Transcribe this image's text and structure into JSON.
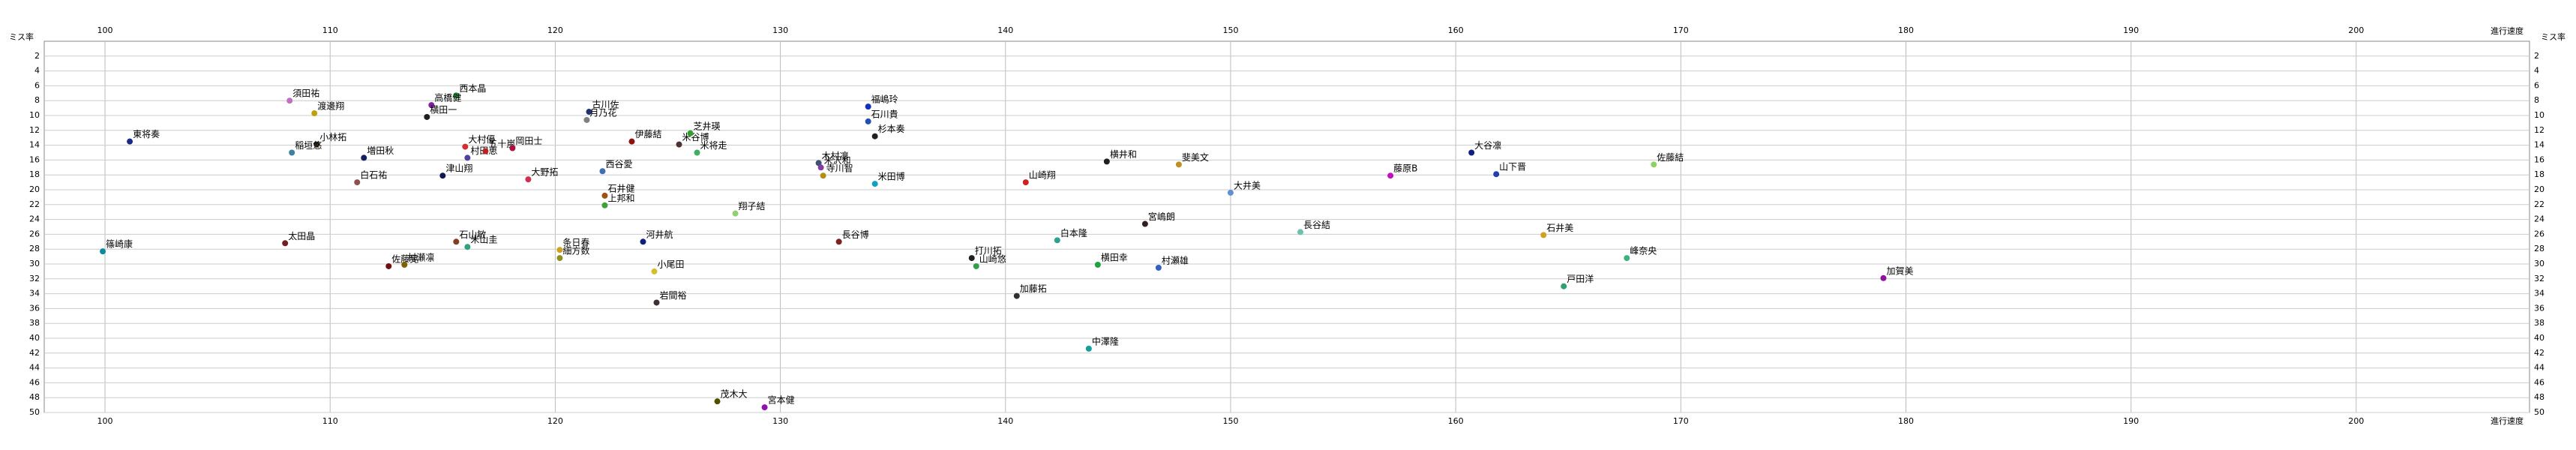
{
  "chart_data": {
    "type": "scatter",
    "x_label": "進行速度",
    "y_label": "ミス率",
    "xlim": [
      97.3,
      207.7
    ],
    "xticks": [
      100,
      110,
      120,
      130,
      140,
      150,
      160,
      170,
      180,
      190,
      200
    ],
    "ylim": [
      0,
      50
    ],
    "yticks": [
      2,
      4,
      6,
      8,
      10,
      12,
      14,
      16,
      18,
      20,
      22,
      24,
      26,
      28,
      30,
      32,
      34,
      36,
      38,
      40,
      42,
      44,
      46,
      48,
      50
    ],
    "y_inverted": true,
    "grid": true,
    "points": [
      {
        "label": "東将奏",
        "x": 101.1,
        "y": 13.5,
        "color": "#1a2a8a"
      },
      {
        "label": "篠崎康",
        "x": 99.9,
        "y": 28.3,
        "color": "#0a8a9a"
      },
      {
        "label": "須田祐",
        "x": 108.2,
        "y": 8.0,
        "color": "#c070c0"
      },
      {
        "label": "渡邊翔",
        "x": 109.3,
        "y": 9.7,
        "color": "#c0a010"
      },
      {
        "label": "小林拓",
        "x": 109.4,
        "y": 13.9,
        "color": "#403020"
      },
      {
        "label": "稲垣悠",
        "x": 108.3,
        "y": 15.0,
        "color": "#4080a0"
      },
      {
        "label": "増田秋",
        "x": 111.5,
        "y": 15.7,
        "color": "#102060"
      },
      {
        "label": "白石祐",
        "x": 111.2,
        "y": 19.0,
        "color": "#905050"
      },
      {
        "label": "太田晶",
        "x": 108.0,
        "y": 27.2,
        "color": "#702020"
      },
      {
        "label": "佐藤晃",
        "x": 112.6,
        "y": 30.3,
        "color": "#701010"
      },
      {
        "label": "村瀬凛",
        "x": 113.3,
        "y": 30.1,
        "color": "#806000"
      },
      {
        "label": "西本晶",
        "x": 115.6,
        "y": 7.3,
        "color": "#20a040"
      },
      {
        "label": "高橋健",
        "x": 114.5,
        "y": 8.6,
        "color": "#8020a0"
      },
      {
        "label": "横田一",
        "x": 114.3,
        "y": 10.2,
        "color": "#202020"
      },
      {
        "label": "大村優",
        "x": 116.0,
        "y": 14.2,
        "color": "#d03030"
      },
      {
        "label": "村田恵",
        "x": 116.1,
        "y": 15.7,
        "color": "#5040a0"
      },
      {
        "label": "津山翔",
        "x": 115.0,
        "y": 18.1,
        "color": "#101850"
      },
      {
        "label": "石山敏",
        "x": 115.6,
        "y": 27.0,
        "color": "#804020"
      },
      {
        "label": "米山圭",
        "x": 116.1,
        "y": 27.7,
        "color": "#30a080"
      },
      {
        "label": "五十嵐",
        "x": 116.9,
        "y": 14.8,
        "color": "#c02020"
      },
      {
        "label": "岡田士",
        "x": 118.1,
        "y": 14.4,
        "color": "#b01040"
      },
      {
        "label": "大野拓",
        "x": 118.8,
        "y": 18.6,
        "color": "#d03050"
      },
      {
        "label": "西谷愛",
        "x": 122.1,
        "y": 17.5,
        "color": "#4070b0"
      },
      {
        "label": "古川佐",
        "x": 121.5,
        "y": 9.5,
        "color": "#203070"
      },
      {
        "label": "月乃花",
        "x": 121.4,
        "y": 10.6,
        "color": "#808080"
      },
      {
        "label": "伊藤結",
        "x": 123.4,
        "y": 13.5,
        "color": "#901010"
      },
      {
        "label": "米谷博",
        "x": 125.5,
        "y": 13.9,
        "color": "#503030"
      },
      {
        "label": "芝井瑛",
        "x": 126.0,
        "y": 12.4,
        "color": "#30a030"
      },
      {
        "label": "米将走",
        "x": 126.3,
        "y": 15.0,
        "color": "#40b060"
      },
      {
        "label": "石井健",
        "x": 122.2,
        "y": 20.8,
        "color": "#a05010"
      },
      {
        "label": "上邦和",
        "x": 122.2,
        "y": 22.1,
        "color": "#40a040"
      },
      {
        "label": "条日春",
        "x": 120.2,
        "y": 28.1,
        "color": "#d0a020"
      },
      {
        "label": "細方数",
        "x": 120.2,
        "y": 29.2,
        "color": "#909020"
      },
      {
        "label": "河井航",
        "x": 123.9,
        "y": 27.0,
        "color": "#102080"
      },
      {
        "label": "小尾田",
        "x": 124.4,
        "y": 31.0,
        "color": "#d0c030"
      },
      {
        "label": "岩間裕",
        "x": 124.5,
        "y": 35.2,
        "color": "#403030"
      },
      {
        "label": "翔子結",
        "x": 128.0,
        "y": 23.2,
        "color": "#90d070"
      },
      {
        "label": "茂木大",
        "x": 127.2,
        "y": 48.5,
        "color": "#505000"
      },
      {
        "label": "宮本健",
        "x": 129.3,
        "y": 49.3,
        "color": "#9010b0"
      },
      {
        "label": "福嶋玲",
        "x": 133.9,
        "y": 8.8,
        "color": "#1030c0"
      },
      {
        "label": "石川貴",
        "x": 133.9,
        "y": 10.8,
        "color": "#2050b0"
      },
      {
        "label": "杉本奏",
        "x": 134.2,
        "y": 12.8,
        "color": "#202020"
      },
      {
        "label": "木村凛",
        "x": 131.7,
        "y": 16.4,
        "color": "#405070"
      },
      {
        "label": "米沢和",
        "x": 131.8,
        "y": 17.0,
        "color": "#8040a0"
      },
      {
        "label": "寺川智",
        "x": 131.9,
        "y": 18.1,
        "color": "#b09010"
      },
      {
        "label": "米田博",
        "x": 134.2,
        "y": 19.2,
        "color": "#10a0c0"
      },
      {
        "label": "長谷博",
        "x": 132.6,
        "y": 27.0,
        "color": "#802020"
      },
      {
        "label": "打川拓",
        "x": 138.5,
        "y": 29.2,
        "color": "#202020"
      },
      {
        "label": "山崎悠",
        "x": 138.7,
        "y": 30.3,
        "color": "#30a050"
      },
      {
        "label": "加藤拓",
        "x": 140.5,
        "y": 34.3,
        "color": "#303030"
      },
      {
        "label": "山崎翔",
        "x": 140.9,
        "y": 19.0,
        "color": "#d02020"
      },
      {
        "label": "白本隆",
        "x": 142.3,
        "y": 26.8,
        "color": "#30a090"
      },
      {
        "label": "横井和",
        "x": 144.5,
        "y": 16.2,
        "color": "#202020"
      },
      {
        "label": "横田幸",
        "x": 144.1,
        "y": 30.1,
        "color": "#20a040"
      },
      {
        "label": "中澤隆",
        "x": 143.7,
        "y": 41.4,
        "color": "#10a0a0"
      },
      {
        "label": "宮嶋朗",
        "x": 146.2,
        "y": 24.6,
        "color": "#302020"
      },
      {
        "label": "斐美文",
        "x": 147.7,
        "y": 16.6,
        "color": "#c09020"
      },
      {
        "label": "村瀬雄",
        "x": 146.8,
        "y": 30.5,
        "color": "#3060c0"
      },
      {
        "label": "大井美",
        "x": 150.0,
        "y": 20.4,
        "color": "#6090d0"
      },
      {
        "label": "長谷結",
        "x": 153.1,
        "y": 25.7,
        "color": "#70c0b0"
      },
      {
        "label": "藤原B",
        "x": 157.1,
        "y": 18.1,
        "color": "#c010c0"
      },
      {
        "label": "大谷凛",
        "x": 160.7,
        "y": 15.0,
        "color": "#102080"
      },
      {
        "label": "山下晋",
        "x": 161.8,
        "y": 17.9,
        "color": "#2040b0"
      },
      {
        "label": "石井美",
        "x": 163.9,
        "y": 26.1,
        "color": "#d0a020"
      },
      {
        "label": "戸田洋",
        "x": 164.8,
        "y": 33.0,
        "color": "#30a070"
      },
      {
        "label": "佐藤結",
        "x": 168.8,
        "y": 16.6,
        "color": "#90d060"
      },
      {
        "label": "峰奈央",
        "x": 167.6,
        "y": 29.2,
        "color": "#40b080"
      },
      {
        "label": "加賀美",
        "x": 179.0,
        "y": 31.9,
        "color": "#9010a0"
      }
    ]
  }
}
